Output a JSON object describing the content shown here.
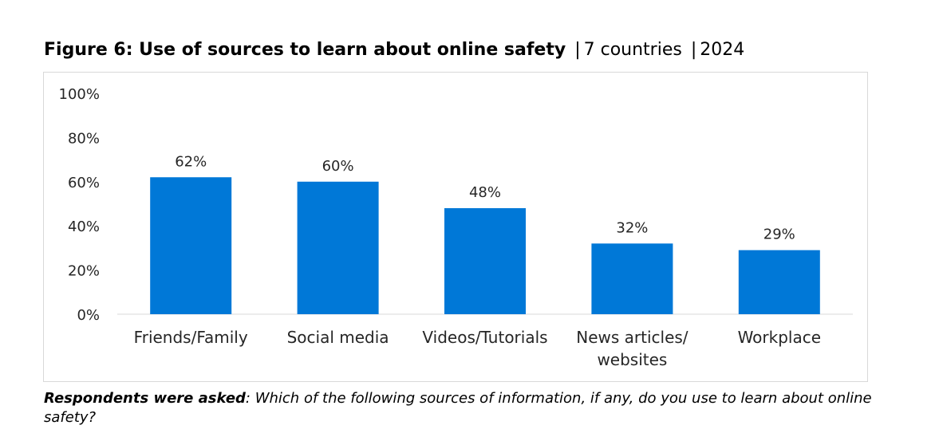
{
  "title": {
    "bold": "Figure 6: Use of sources to learn about online safety",
    "sep1": "|",
    "part2": "7 countries",
    "sep2": "|",
    "part3": "2024"
  },
  "footnote": {
    "lead": "Respondents were asked",
    "text": ": Which of the following sources of information, if any, do you use to learn about online safety?"
  },
  "colors": {
    "bar": "#0078d7",
    "axis": "#d9d9d9",
    "text": "#262626"
  },
  "chart_data": {
    "type": "bar",
    "title": "Figure 6: Use of sources to learn about online safety | 7 countries | 2024",
    "categories": [
      [
        "Friends/Family"
      ],
      [
        "Social media"
      ],
      [
        "Videos/Tutorials"
      ],
      [
        "News articles/",
        "websites"
      ],
      [
        "Workplace"
      ]
    ],
    "values": [
      62,
      60,
      48,
      32,
      29
    ],
    "data_labels": [
      "62%",
      "60%",
      "48%",
      "32%",
      "29%"
    ],
    "yticks": [
      "0%",
      "20%",
      "40%",
      "60%",
      "80%",
      "100%"
    ],
    "ylim": [
      0,
      100
    ],
    "grid": false,
    "legend": "none",
    "xlabel": "",
    "ylabel": ""
  }
}
